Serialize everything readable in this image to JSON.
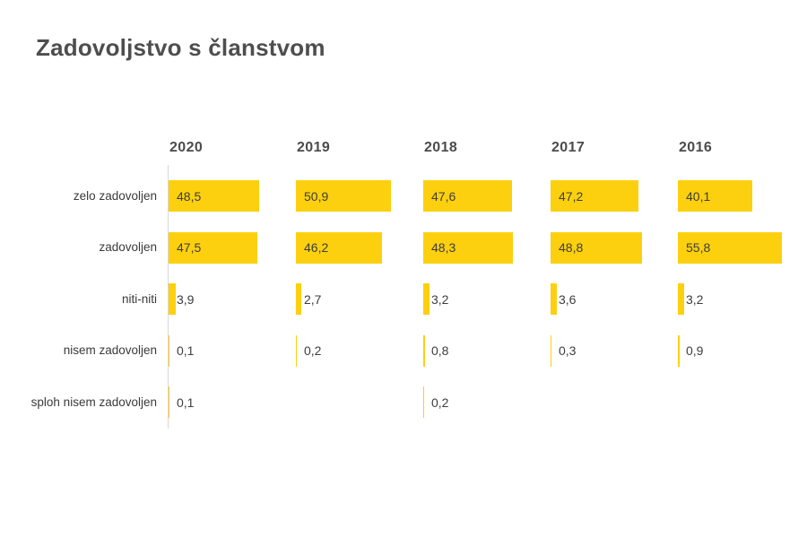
{
  "chart_data": {
    "type": "bar",
    "orientation": "horizontal",
    "title": "Zadovoljstvo s članstvom",
    "categories": [
      "zelo zadovoljen",
      "zadovoljen",
      "niti-niti",
      "nisem zadovoljen",
      "sploh nisem zadovoljen"
    ],
    "series": [
      {
        "name": "2020",
        "values": [
          48.5,
          47.5,
          3.9,
          0.1,
          0.1
        ]
      },
      {
        "name": "2019",
        "values": [
          50.9,
          46.2,
          2.7,
          0.2,
          null
        ]
      },
      {
        "name": "2018",
        "values": [
          47.6,
          48.3,
          3.2,
          0.8,
          0.2
        ]
      },
      {
        "name": "2017",
        "values": [
          47.2,
          48.8,
          3.6,
          0.3,
          null
        ]
      },
      {
        "name": "2016",
        "values": [
          40.1,
          55.8,
          3.2,
          0.9,
          null
        ]
      }
    ],
    "value_labels": [
      [
        "48,5",
        "47,5",
        "3,9",
        "0,1",
        "0,1"
      ],
      [
        "50,9",
        "46,2",
        "2,7",
        "0,2",
        null
      ],
      [
        "47,6",
        "48,3",
        "3,2",
        "0,8",
        "0,2"
      ],
      [
        "47,2",
        "48,8",
        "3,6",
        "0,3",
        null
      ],
      [
        "40,1",
        "55,8",
        "3,2",
        "0,9",
        null
      ]
    ],
    "value_format": "decimal-comma",
    "xlim": [
      0,
      60
    ],
    "grid": false,
    "legend_position": "column-headers-top",
    "axis_line": "first-column-only",
    "colors": {
      "bar": "#FCD00E",
      "axis_line": "#D8D8D8",
      "title_text": "#4E4E4E",
      "header_text": "#4B4B4B",
      "label_text": "#3A3A3A",
      "value_text": "#3D3D3D",
      "background": "#FFFFFF"
    }
  }
}
